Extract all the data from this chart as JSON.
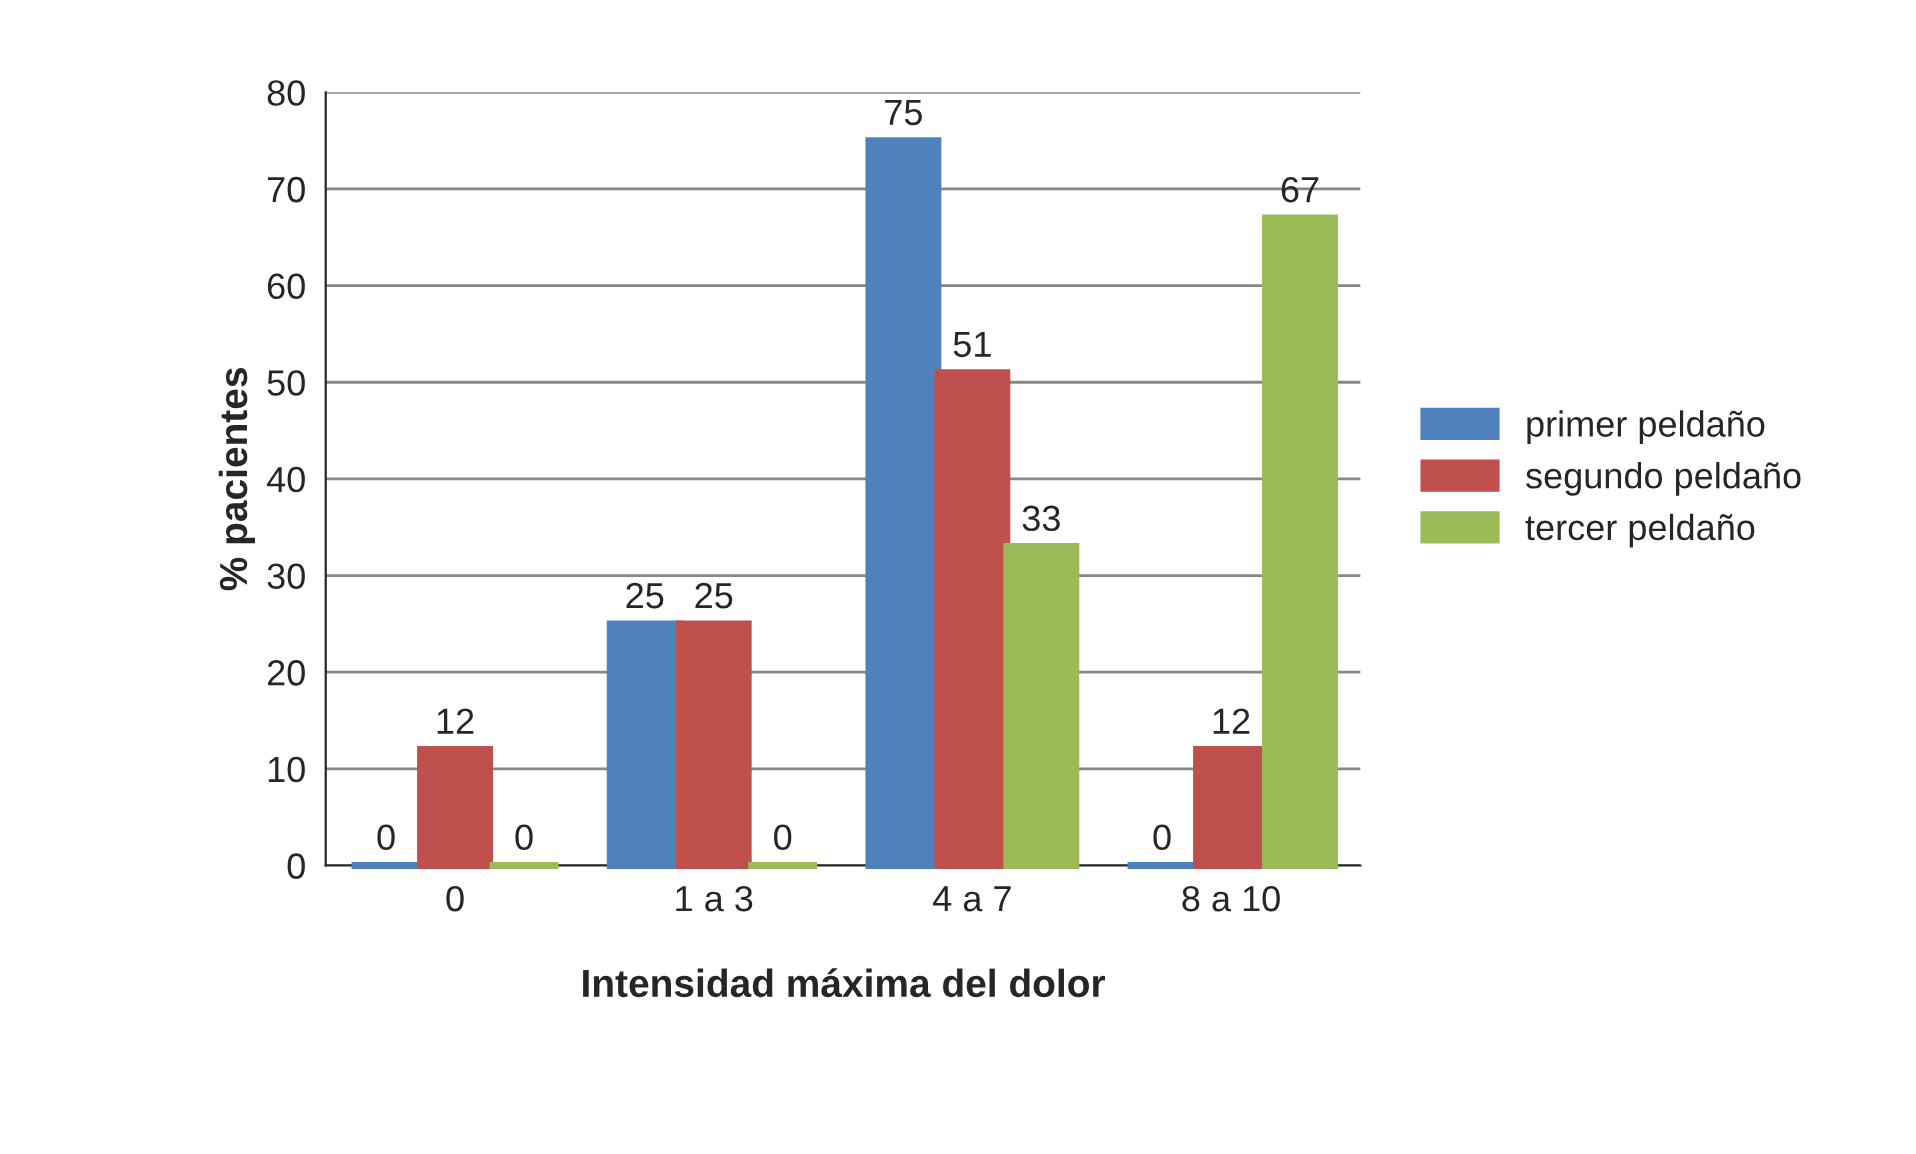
{
  "chart_data": {
    "type": "bar",
    "xlabel": "Intensidad máxima del dolor",
    "ylabel": "% pacientes",
    "categories": [
      "0",
      "1 a 3",
      "4 a 7",
      "8 a 10"
    ],
    "series": [
      {
        "name": "primer peldaño",
        "color": "#4f81bd",
        "values": [
          0,
          25,
          75,
          0
        ]
      },
      {
        "name": "segundo peldaño",
        "color": "#c0504d",
        "values": [
          12,
          25,
          51,
          12
        ]
      },
      {
        "name": "tercer peldaño",
        "color": "#9bbb59",
        "values": [
          0,
          0,
          33,
          67
        ]
      }
    ],
    "ylim": [
      0,
      80
    ],
    "yticks": [
      0,
      10,
      20,
      30,
      40,
      50,
      60,
      70,
      80
    ],
    "grid": "y",
    "legend": "right",
    "data_labels": true
  }
}
